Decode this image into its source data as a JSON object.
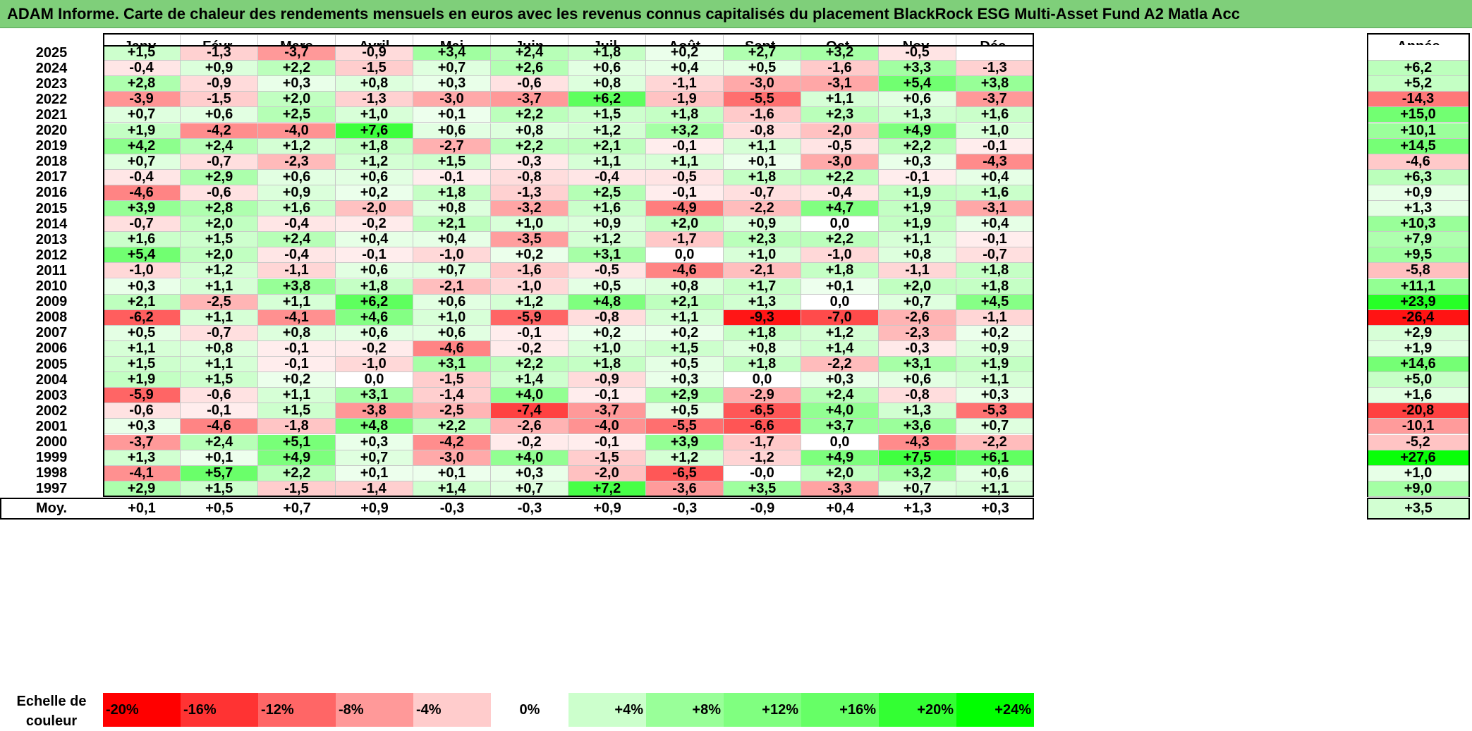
{
  "title": "ADAM Informe. Carte de chaleur des rendements mensuels en euros avec les revenus connus capitalisés du placement BlackRock ESG Multi-Asset Fund A2 Matla Acc",
  "chart_data": {
    "type": "heatmap",
    "title": "ADAM Informe. Carte de chaleur des rendements mensuels en euros avec les revenus connus capitalisés du placement BlackRock ESG Multi-Asset Fund A2 Matla Acc",
    "columns": [
      "Janv.",
      "Févr.",
      "Mars",
      "Avril",
      "Mai",
      "Juin",
      "Juil.",
      "Août",
      "Sept.",
      "Oct.",
      "Nov.",
      "Déc."
    ],
    "annual_header": "Année",
    "average_label": "Moy.",
    "rows": [
      {
        "year": "2025",
        "months": [
          "+1,5",
          "-1,3",
          "-3,7",
          "-0,9",
          "+3,4",
          "+2,4",
          "+1,8",
          "+0,2",
          "+2,7",
          "+3,2",
          "-0,5",
          ""
        ],
        "annual": ""
      },
      {
        "year": "2024",
        "months": [
          "-0,4",
          "+0,9",
          "+2,2",
          "-1,5",
          "+0,7",
          "+2,6",
          "+0,6",
          "+0,4",
          "+0,5",
          "-1,6",
          "+3,3",
          "-1,3"
        ],
        "annual": "+6,2"
      },
      {
        "year": "2023",
        "months": [
          "+2,8",
          "-0,9",
          "+0,3",
          "+0,8",
          "+0,3",
          "-0,6",
          "+0,8",
          "-1,1",
          "-3,0",
          "-3,1",
          "+5,4",
          "+3,8"
        ],
        "annual": "+5,2"
      },
      {
        "year": "2022",
        "months": [
          "-3,9",
          "-1,5",
          "+2,0",
          "-1,3",
          "-3,0",
          "-3,7",
          "+6,2",
          "-1,9",
          "-5,5",
          "+1,1",
          "+0,6",
          "-3,7"
        ],
        "annual": "-14,3"
      },
      {
        "year": "2021",
        "months": [
          "+0,7",
          "+0,6",
          "+2,5",
          "+1,0",
          "+0,1",
          "+2,2",
          "+1,5",
          "+1,8",
          "-1,6",
          "+2,3",
          "+1,3",
          "+1,6"
        ],
        "annual": "+15,0"
      },
      {
        "year": "2020",
        "months": [
          "+1,9",
          "-4,2",
          "-4,0",
          "+7,6",
          "+0,6",
          "+0,8",
          "+1,2",
          "+3,2",
          "-0,8",
          "-2,0",
          "+4,9",
          "+1,0"
        ],
        "annual": "+10,1"
      },
      {
        "year": "2019",
        "months": [
          "+4,2",
          "+2,4",
          "+1,2",
          "+1,8",
          "-2,7",
          "+2,2",
          "+2,1",
          "-0,1",
          "+1,1",
          "-0,5",
          "+2,2",
          "-0,1"
        ],
        "annual": "+14,5"
      },
      {
        "year": "2018",
        "months": [
          "+0,7",
          "-0,7",
          "-2,3",
          "+1,2",
          "+1,5",
          "-0,3",
          "+1,1",
          "+1,1",
          "+0,1",
          "-3,0",
          "+0,3",
          "-4,3"
        ],
        "annual": "-4,6"
      },
      {
        "year": "2017",
        "months": [
          "-0,4",
          "+2,9",
          "+0,6",
          "+0,6",
          "-0,1",
          "-0,8",
          "-0,4",
          "-0,5",
          "+1,8",
          "+2,2",
          "-0,1",
          "+0,4"
        ],
        "annual": "+6,3"
      },
      {
        "year": "2016",
        "months": [
          "-4,6",
          "-0,6",
          "+0,9",
          "+0,2",
          "+1,8",
          "-1,3",
          "+2,5",
          "-0,1",
          "-0,7",
          "-0,4",
          "+1,9",
          "+1,6"
        ],
        "annual": "+0,9"
      },
      {
        "year": "2015",
        "months": [
          "+3,9",
          "+2,8",
          "+1,6",
          "-2,0",
          "+0,8",
          "-3,2",
          "+1,6",
          "-4,9",
          "-2,2",
          "+4,7",
          "+1,9",
          "-3,1"
        ],
        "annual": "+1,3"
      },
      {
        "year": "2014",
        "months": [
          "-0,7",
          "+2,0",
          "-0,4",
          "-0,2",
          "+2,1",
          "+1,0",
          "+0,9",
          "+2,0",
          "+0,9",
          "0,0",
          "+1,9",
          "+0,4"
        ],
        "annual": "+10,3"
      },
      {
        "year": "2013",
        "months": [
          "+1,6",
          "+1,5",
          "+2,4",
          "+0,4",
          "+0,4",
          "-3,5",
          "+1,2",
          "-1,7",
          "+2,3",
          "+2,2",
          "+1,1",
          "-0,1"
        ],
        "annual": "+7,9"
      },
      {
        "year": "2012",
        "months": [
          "+5,4",
          "+2,0",
          "-0,4",
          "-0,1",
          "-1,0",
          "+0,2",
          "+3,1",
          "0,0",
          "+1,0",
          "-1,0",
          "+0,8",
          "-0,7"
        ],
        "annual": "+9,5"
      },
      {
        "year": "2011",
        "months": [
          "-1,0",
          "+1,2",
          "-1,1",
          "+0,6",
          "+0,7",
          "-1,6",
          "-0,5",
          "-4,6",
          "-2,1",
          "+1,8",
          "-1,1",
          "+1,8"
        ],
        "annual": "-5,8"
      },
      {
        "year": "2010",
        "months": [
          "+0,3",
          "+1,1",
          "+3,8",
          "+1,8",
          "-2,1",
          "-1,0",
          "+0,5",
          "+0,8",
          "+1,7",
          "+0,1",
          "+2,0",
          "+1,8"
        ],
        "annual": "+11,1"
      },
      {
        "year": "2009",
        "months": [
          "+2,1",
          "-2,5",
          "+1,1",
          "+6,2",
          "+0,6",
          "+1,2",
          "+4,8",
          "+2,1",
          "+1,3",
          "0,0",
          "+0,7",
          "+4,5"
        ],
        "annual": "+23,9"
      },
      {
        "year": "2008",
        "months": [
          "-6,2",
          "+1,1",
          "-4,1",
          "+4,6",
          "+1,0",
          "-5,9",
          "-0,8",
          "+1,1",
          "-9,3",
          "-7,0",
          "-2,6",
          "-1,1"
        ],
        "annual": "-26,4"
      },
      {
        "year": "2007",
        "months": [
          "+0,5",
          "-0,7",
          "+0,8",
          "+0,6",
          "+0,6",
          "-0,1",
          "+0,2",
          "+0,2",
          "+1,8",
          "+1,2",
          "-2,3",
          "+0,2"
        ],
        "annual": "+2,9"
      },
      {
        "year": "2006",
        "months": [
          "+1,1",
          "+0,8",
          "-0,1",
          "-0,2",
          "-4,6",
          "-0,2",
          "+1,0",
          "+1,5",
          "+0,8",
          "+1,4",
          "-0,3",
          "+0,9"
        ],
        "annual": "+1,9"
      },
      {
        "year": "2005",
        "months": [
          "+1,5",
          "+1,1",
          "-0,1",
          "-1,0",
          "+3,1",
          "+2,2",
          "+1,8",
          "+0,5",
          "+1,8",
          "-2,2",
          "+3,1",
          "+1,9"
        ],
        "annual": "+14,6"
      },
      {
        "year": "2004",
        "months": [
          "+1,9",
          "+1,5",
          "+0,2",
          "0,0",
          "-1,5",
          "+1,4",
          "-0,9",
          "+0,3",
          "0,0",
          "+0,3",
          "+0,6",
          "+1,1"
        ],
        "annual": "+5,0"
      },
      {
        "year": "2003",
        "months": [
          "-5,9",
          "-0,6",
          "+1,1",
          "+3,1",
          "-1,4",
          "+4,0",
          "-0,1",
          "+2,9",
          "-2,9",
          "+2,4",
          "-0,8",
          "+0,3"
        ],
        "annual": "+1,6"
      },
      {
        "year": "2002",
        "months": [
          "-0,6",
          "-0,1",
          "+1,5",
          "-3,8",
          "-2,5",
          "-7,4",
          "-3,7",
          "+0,5",
          "-6,5",
          "+4,0",
          "+1,3",
          "-5,3"
        ],
        "annual": "-20,8"
      },
      {
        "year": "2001",
        "months": [
          "+0,3",
          "-4,6",
          "-1,8",
          "+4,8",
          "+2,2",
          "-2,6",
          "-4,0",
          "-5,5",
          "-6,6",
          "+3,7",
          "+3,6",
          "+0,7"
        ],
        "annual": "-10,1"
      },
      {
        "year": "2000",
        "months": [
          "-3,7",
          "+2,4",
          "+5,1",
          "+0,3",
          "-4,2",
          "-0,2",
          "-0,1",
          "+3,9",
          "-1,7",
          "0,0",
          "-4,3",
          "-2,2"
        ],
        "annual": "-5,2"
      },
      {
        "year": "1999",
        "months": [
          "+1,3",
          "+0,1",
          "+4,9",
          "+0,7",
          "-3,0",
          "+4,0",
          "-1,5",
          "+1,2",
          "-1,2",
          "+4,9",
          "+7,5",
          "+6,1"
        ],
        "annual": "+27,6"
      },
      {
        "year": "1998",
        "months": [
          "-4,1",
          "+5,7",
          "+2,2",
          "+0,1",
          "+0,1",
          "+0,3",
          "-2,0",
          "-6,5",
          "-0,0",
          "+2,0",
          "+3,2",
          "+0,6"
        ],
        "annual": "+1,0"
      },
      {
        "year": "1997",
        "months": [
          "+2,9",
          "+1,5",
          "-1,5",
          "-1,4",
          "+1,4",
          "+0,7",
          "+7,2",
          "-3,6",
          "+3,5",
          "-3,3",
          "+0,7",
          "+1,1"
        ],
        "annual": "+9,0"
      }
    ],
    "average": {
      "months": [
        "+0,1",
        "+0,5",
        "+0,7",
        "+0,9",
        "-0,3",
        "-0,3",
        "+0,9",
        "-0,3",
        "-0,9",
        "+0,4",
        "+1,3",
        "+0,3"
      ],
      "annual": "+3,5"
    },
    "scale": {
      "label": "Echelle de couleur",
      "stops": [
        {
          "label": "-20%",
          "color": "#ff0000"
        },
        {
          "label": "-16%",
          "color": "#ff3333"
        },
        {
          "label": "-12%",
          "color": "#ff6666"
        },
        {
          "label": "-8%",
          "color": "#ff9999"
        },
        {
          "label": "-4%",
          "color": "#ffcccc"
        },
        {
          "label": "0%",
          "color": "#ffffff"
        },
        {
          "label": "+4%",
          "color": "#ccffcc"
        },
        {
          "label": "+8%",
          "color": "#99ff99"
        },
        {
          "label": "+12%",
          "color": "#80ff80"
        },
        {
          "label": "+16%",
          "color": "#66ff66"
        },
        {
          "label": "+20%",
          "color": "#33ff33"
        },
        {
          "label": "+24%",
          "color": "#00ff00"
        }
      ]
    }
  }
}
